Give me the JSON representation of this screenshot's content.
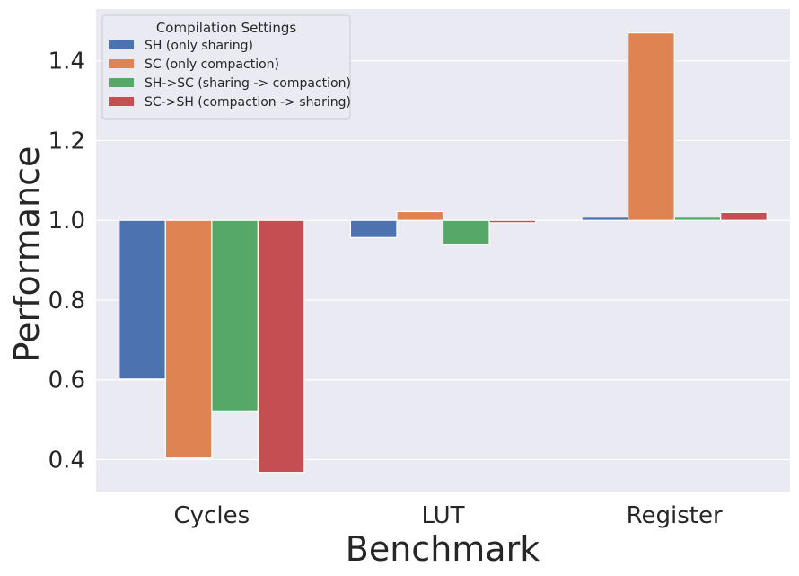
{
  "chart_data": {
    "type": "bar",
    "title": "",
    "xlabel": "Benchmark",
    "ylabel": "Performance",
    "categories": [
      "Cycles",
      "LUT",
      "Register"
    ],
    "baseline": 1.0,
    "ylim": [
      0.32,
      1.53
    ],
    "yticks": [
      0.4,
      0.6,
      0.8,
      1.0,
      1.2,
      1.4
    ],
    "grid": true,
    "legend": {
      "title": "Compilation Settings",
      "placement": "top-left"
    },
    "series": [
      {
        "name": "SH (only sharing)",
        "color": "#4c72b0",
        "values": [
          0.602,
          0.957,
          1.008
        ]
      },
      {
        "name": "SC (only compaction)",
        "color": "#dd8452",
        "values": [
          0.404,
          1.022,
          1.47
        ]
      },
      {
        "name": "SH->SC (sharing -> compaction)",
        "color": "#55a868",
        "values": [
          0.522,
          0.94,
          1.008
        ]
      },
      {
        "name": "SC->SH (compaction -> sharing)",
        "color": "#c44e52",
        "values": [
          0.368,
          0.994,
          1.02
        ]
      }
    ]
  }
}
